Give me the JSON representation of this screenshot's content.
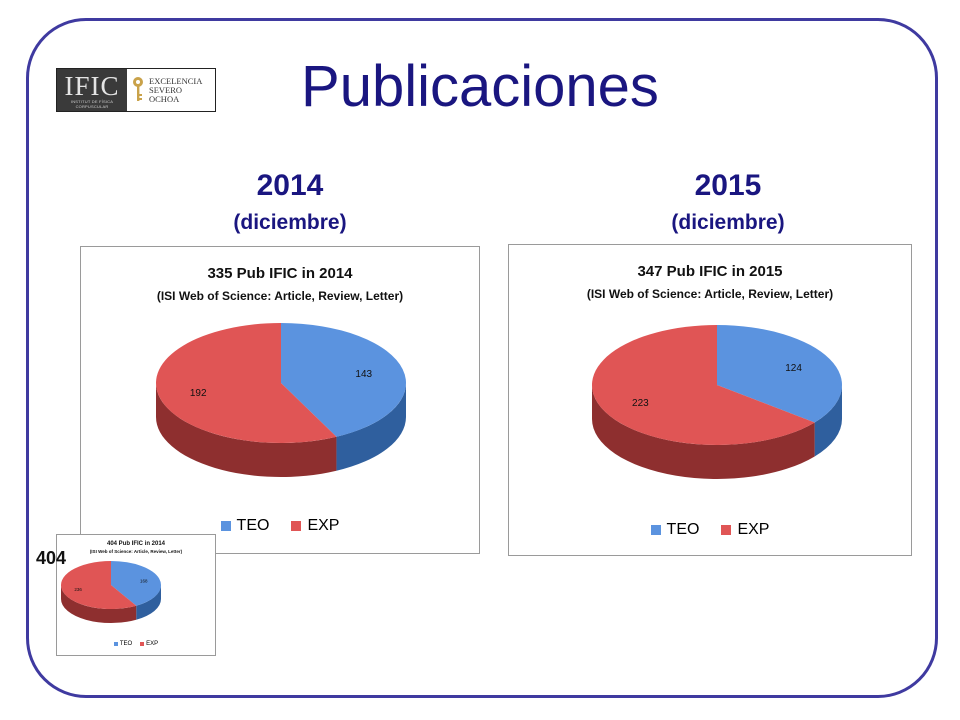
{
  "slide": {
    "title": "Publicaciones",
    "logo": {
      "mark": "IFIC",
      "subtext_1": "INSTITUT DE FÍSICA",
      "subtext_2": "CORPUSCULAR",
      "line1": "EXCELENCIA",
      "line2": "SEVERO",
      "line3": "OCHOA"
    },
    "columns": [
      {
        "year": "2014",
        "month": "(diciembre)"
      },
      {
        "year": "2015",
        "month": "(diciembre)"
      }
    ],
    "inset_label": "404"
  },
  "colors": {
    "teo": "#5b93df",
    "exp": "#e05555",
    "frame": "#3f3aa0",
    "title": "#1a1680"
  },
  "chart_data": [
    {
      "type": "pie",
      "title": "335 Pub IFIC in 2014",
      "subtitle": "(ISI Web of Science: Article, Review, Letter)",
      "categories": [
        "TEO",
        "EXP"
      ],
      "values": [
        143,
        192
      ],
      "legend": "bottom"
    },
    {
      "type": "pie",
      "title": "347 Pub IFIC in 2015",
      "subtitle": "(ISI Web of Science: Article, Review, Letter)",
      "categories": [
        "TEO",
        "EXP"
      ],
      "values": [
        124,
        223
      ],
      "legend": "bottom"
    },
    {
      "type": "pie",
      "title": "404 Pub IFIC in 2014",
      "subtitle": "(ISI Web of Science: Article, Review, Letter)",
      "categories": [
        "TEO",
        "EXP"
      ],
      "values": [
        168,
        236
      ],
      "legend": "bottom"
    }
  ]
}
